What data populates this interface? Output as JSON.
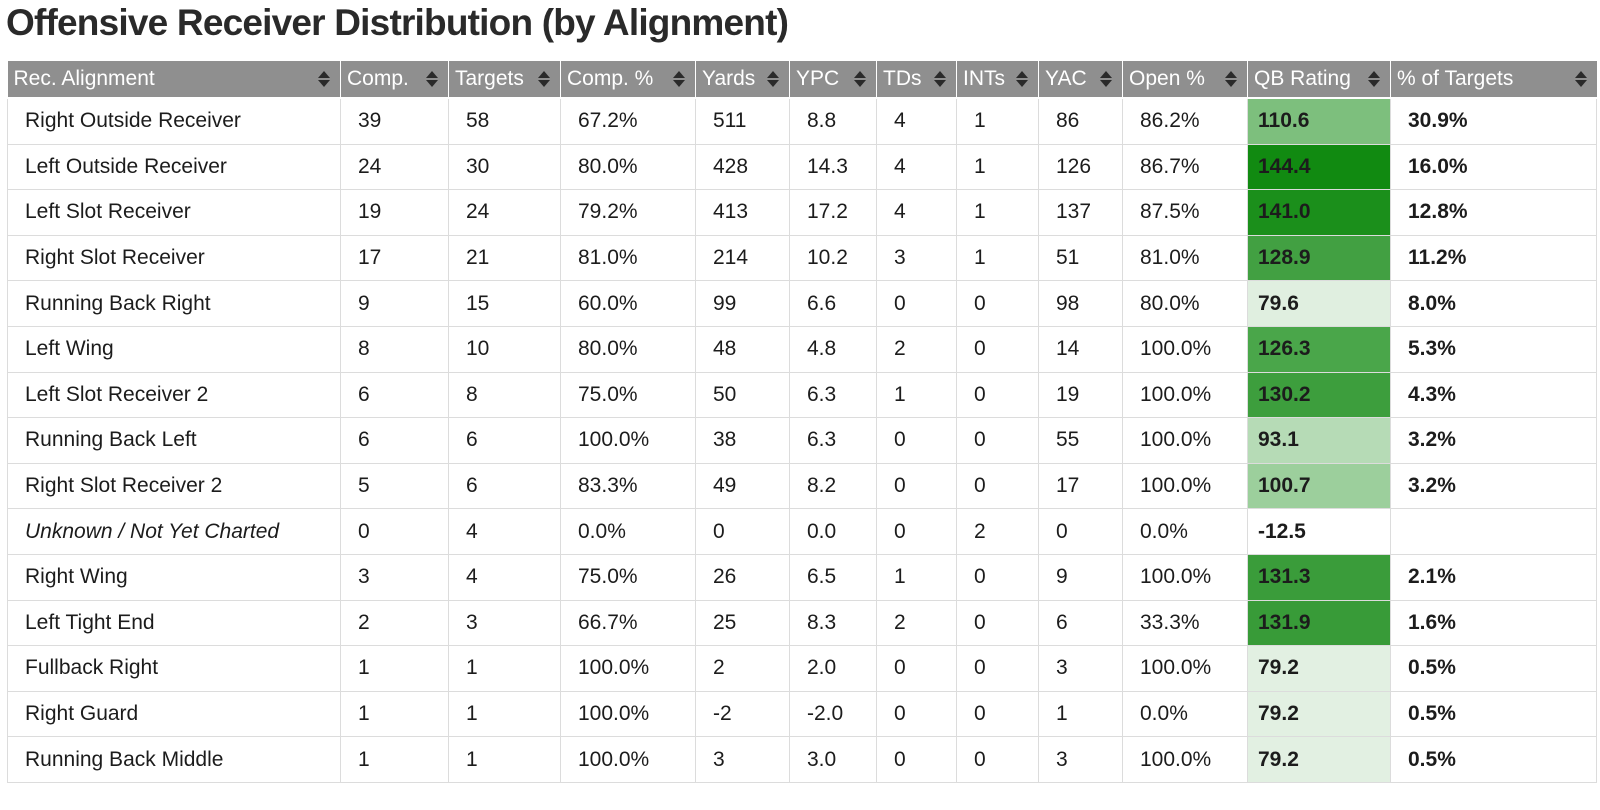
{
  "title": "Offensive Receiver Distribution (by Alignment)",
  "columns": [
    {
      "key": "alignment",
      "label": "Rec. Alignment"
    },
    {
      "key": "comp",
      "label": "Comp."
    },
    {
      "key": "targets",
      "label": "Targets"
    },
    {
      "key": "comp_pct",
      "label": "Comp. %"
    },
    {
      "key": "yards",
      "label": "Yards"
    },
    {
      "key": "ypc",
      "label": "YPC"
    },
    {
      "key": "tds",
      "label": "TDs"
    },
    {
      "key": "ints",
      "label": "INTs"
    },
    {
      "key": "yac",
      "label": "YAC"
    },
    {
      "key": "open_pct",
      "label": "Open %"
    },
    {
      "key": "qb_rating",
      "label": "QB Rating"
    },
    {
      "key": "pct_targets",
      "label": "% of Targets"
    }
  ],
  "rows": [
    {
      "alignment": "Right Outside Receiver",
      "comp": "39",
      "targets": "58",
      "comp_pct": "67.2%",
      "yards": "511",
      "ypc": "8.8",
      "tds": "4",
      "ints": "1",
      "yac": "86",
      "open_pct": "86.2%",
      "qb_rating": "110.6",
      "pct_targets": "30.9%",
      "qb_color": "#7dbf7d"
    },
    {
      "alignment": "Left Outside Receiver",
      "comp": "24",
      "targets": "30",
      "comp_pct": "80.0%",
      "yards": "428",
      "ypc": "14.3",
      "tds": "4",
      "ints": "1",
      "yac": "126",
      "open_pct": "86.7%",
      "qb_rating": "144.4",
      "pct_targets": "16.0%",
      "qb_color": "#118a11"
    },
    {
      "alignment": "Left Slot Receiver",
      "comp": "19",
      "targets": "24",
      "comp_pct": "79.2%",
      "yards": "413",
      "ypc": "17.2",
      "tds": "4",
      "ints": "1",
      "yac": "137",
      "open_pct": "87.5%",
      "qb_rating": "141.0",
      "pct_targets": "12.8%",
      "qb_color": "#1b8f1b"
    },
    {
      "alignment": "Right Slot Receiver",
      "comp": "17",
      "targets": "21",
      "comp_pct": "81.0%",
      "yards": "214",
      "ypc": "10.2",
      "tds": "3",
      "ints": "1",
      "yac": "51",
      "open_pct": "81.0%",
      "qb_rating": "128.9",
      "pct_targets": "11.2%",
      "qb_color": "#42a042"
    },
    {
      "alignment": "Running Back Right",
      "comp": "9",
      "targets": "15",
      "comp_pct": "60.0%",
      "yards": "99",
      "ypc": "6.6",
      "tds": "0",
      "ints": "0",
      "yac": "98",
      "open_pct": "80.0%",
      "qb_rating": "79.6",
      "pct_targets": "8.0%",
      "qb_color": "#e0efe0"
    },
    {
      "alignment": "Left Wing",
      "comp": "8",
      "targets": "10",
      "comp_pct": "80.0%",
      "yards": "48",
      "ypc": "4.8",
      "tds": "2",
      "ints": "0",
      "yac": "14",
      "open_pct": "100.0%",
      "qb_rating": "126.3",
      "pct_targets": "5.3%",
      "qb_color": "#4aa64a"
    },
    {
      "alignment": "Left Slot Receiver 2",
      "comp": "6",
      "targets": "8",
      "comp_pct": "75.0%",
      "yards": "50",
      "ypc": "6.3",
      "tds": "1",
      "ints": "0",
      "yac": "19",
      "open_pct": "100.0%",
      "qb_rating": "130.2",
      "pct_targets": "4.3%",
      "qb_color": "#3d9e3d"
    },
    {
      "alignment": "Running Back Left",
      "comp": "6",
      "targets": "6",
      "comp_pct": "100.0%",
      "yards": "38",
      "ypc": "6.3",
      "tds": "0",
      "ints": "0",
      "yac": "55",
      "open_pct": "100.0%",
      "qb_rating": "93.1",
      "pct_targets": "3.2%",
      "qb_color": "#b6dbb6"
    },
    {
      "alignment": "Right Slot Receiver 2",
      "comp": "5",
      "targets": "6",
      "comp_pct": "83.3%",
      "yards": "49",
      "ypc": "8.2",
      "tds": "0",
      "ints": "0",
      "yac": "17",
      "open_pct": "100.0%",
      "qb_rating": "100.7",
      "pct_targets": "3.2%",
      "qb_color": "#9ccf9c"
    },
    {
      "alignment": "Unknown / Not Yet Charted",
      "comp": "0",
      "targets": "4",
      "comp_pct": "0.0%",
      "yards": "0",
      "ypc": "0.0",
      "tds": "0",
      "ints": "2",
      "yac": "0",
      "open_pct": "0.0%",
      "qb_rating": "-12.5",
      "pct_targets": "",
      "qb_color": "#ffffff",
      "italic": true
    },
    {
      "alignment": "Right Wing",
      "comp": "3",
      "targets": "4",
      "comp_pct": "75.0%",
      "yards": "26",
      "ypc": "6.5",
      "tds": "1",
      "ints": "0",
      "yac": "9",
      "open_pct": "100.0%",
      "qb_rating": "131.3",
      "pct_targets": "2.1%",
      "qb_color": "#3a9c3a"
    },
    {
      "alignment": "Left Tight End",
      "comp": "2",
      "targets": "3",
      "comp_pct": "66.7%",
      "yards": "25",
      "ypc": "8.3",
      "tds": "2",
      "ints": "0",
      "yac": "6",
      "open_pct": "33.3%",
      "qb_rating": "131.9",
      "pct_targets": "1.6%",
      "qb_color": "#389b38"
    },
    {
      "alignment": "Fullback Right",
      "comp": "1",
      "targets": "1",
      "comp_pct": "100.0%",
      "yards": "2",
      "ypc": "2.0",
      "tds": "0",
      "ints": "0",
      "yac": "3",
      "open_pct": "100.0%",
      "qb_rating": "79.2",
      "pct_targets": "0.5%",
      "qb_color": "#e2f0e2"
    },
    {
      "alignment": "Right Guard",
      "comp": "1",
      "targets": "1",
      "comp_pct": "100.0%",
      "yards": "-2",
      "ypc": "-2.0",
      "tds": "0",
      "ints": "0",
      "yac": "1",
      "open_pct": "0.0%",
      "qb_rating": "79.2",
      "pct_targets": "0.5%",
      "qb_color": "#e2f0e2"
    },
    {
      "alignment": "Running Back Middle",
      "comp": "1",
      "targets": "1",
      "comp_pct": "100.0%",
      "yards": "3",
      "ypc": "3.0",
      "tds": "0",
      "ints": "0",
      "yac": "3",
      "open_pct": "100.0%",
      "qb_rating": "79.2",
      "pct_targets": "0.5%",
      "qb_color": "#e2f0e2"
    }
  ]
}
